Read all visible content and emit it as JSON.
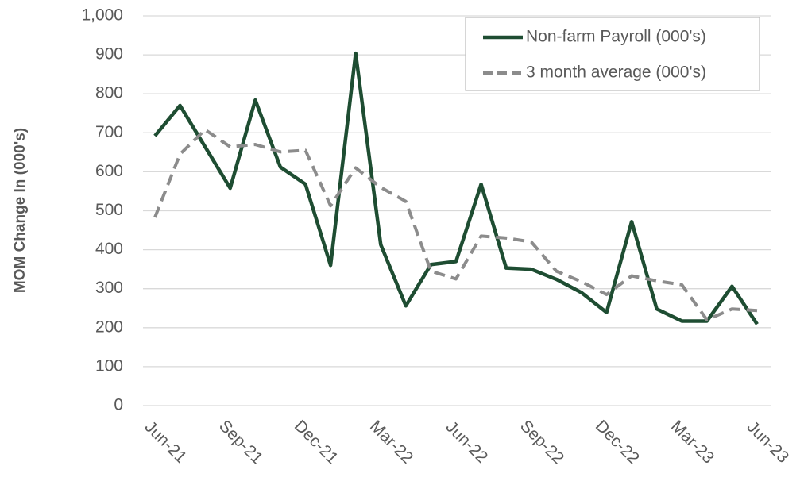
{
  "chart_data": {
    "type": "line",
    "y_label": "MOM Change In (000's)",
    "categories": [
      "Jun-21",
      null,
      null,
      "Sep-21",
      null,
      null,
      "Dec-21",
      null,
      null,
      "Mar-22",
      null,
      null,
      "Jun-22",
      null,
      null,
      "Sep-22",
      null,
      null,
      "Dec-22",
      null,
      null,
      "Mar-23",
      null,
      null,
      "Jun-23"
    ],
    "series": [
      {
        "name": "Non-farm Payroll (000's)",
        "color": "#1e4d32",
        "dash": false,
        "values": [
          692,
          770,
          664,
          558,
          784,
          612,
          568,
          360,
          904,
          413,
          256,
          362,
          370,
          568,
          353,
          350,
          324,
          290,
          239,
          472,
          248,
          217,
          217,
          306,
          209
        ]
      },
      {
        "name": "3 month average (000's)",
        "color": "#8c8c8c",
        "dash": true,
        "values": [
          483,
          645,
          708,
          664,
          670,
          651,
          655,
          513,
          610,
          560,
          524,
          345,
          325,
          435,
          430,
          420,
          345,
          318,
          285,
          333,
          320,
          310,
          220,
          248,
          244
        ]
      }
    ],
    "ylim": [
      0,
      1000
    ],
    "yticks": [
      0,
      100,
      200,
      300,
      400,
      500,
      600,
      700,
      800,
      900,
      {
        "value": 1000,
        "label": "1,000"
      }
    ],
    "grid": true,
    "legend": "top-right"
  }
}
